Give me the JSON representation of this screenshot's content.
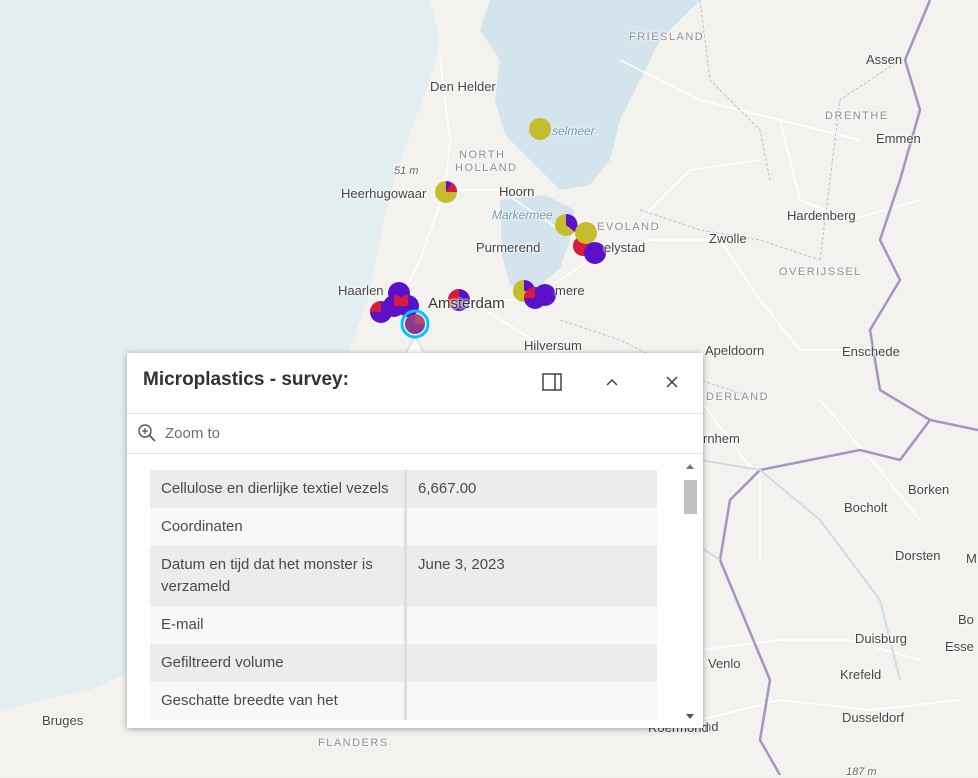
{
  "map": {
    "labels": [
      {
        "id": "friesland",
        "text": "FRIESLAND",
        "kind": "region"
      },
      {
        "id": "den-helder",
        "text": "Den Helder",
        "kind": "city"
      },
      {
        "id": "ijsselmeer",
        "text": "selmeer",
        "kind": "water"
      },
      {
        "id": "assen",
        "text": "Assen",
        "kind": "city"
      },
      {
        "id": "drenthe",
        "text": "DRENTHE",
        "kind": "region"
      },
      {
        "id": "emmen",
        "text": "Emmen",
        "kind": "city"
      },
      {
        "id": "north-holland-1",
        "text": "NORTH",
        "kind": "region"
      },
      {
        "id": "north-holland-2",
        "text": "HOLLAND",
        "kind": "region"
      },
      {
        "id": "elev-51",
        "text": "51 m",
        "kind": "elev"
      },
      {
        "id": "heerhugowaard",
        "text": "Heerhugowaar",
        "kind": "city"
      },
      {
        "id": "hoorn",
        "text": "Hoorn",
        "kind": "city"
      },
      {
        "id": "markermeer",
        "text": "Markermee",
        "kind": "water"
      },
      {
        "id": "flevoland",
        "text": "EVOLAND",
        "kind": "region"
      },
      {
        "id": "hardenberg",
        "text": "Hardenberg",
        "kind": "city"
      },
      {
        "id": "purmerend",
        "text": "Purmerend",
        "kind": "city"
      },
      {
        "id": "lelystad",
        "text": "elystad",
        "kind": "city"
      },
      {
        "id": "zwolle",
        "text": "Zwolle",
        "kind": "city"
      },
      {
        "id": "overijssel",
        "text": "OVERIJSSEL",
        "kind": "region"
      },
      {
        "id": "haarlem",
        "text": "Haarlen",
        "kind": "city"
      },
      {
        "id": "amsterdam",
        "text": "Amsterdam",
        "kind": "big"
      },
      {
        "id": "almere",
        "text": "mere",
        "kind": "city"
      },
      {
        "id": "hilversum",
        "text": "Hilversum",
        "kind": "city"
      },
      {
        "id": "apeldoorn",
        "text": "Apeldoorn",
        "kind": "city"
      },
      {
        "id": "enschede",
        "text": "Enschede",
        "kind": "city"
      },
      {
        "id": "gelderland",
        "text": "DERLAND",
        "kind": "region"
      },
      {
        "id": "arnhem",
        "text": "rnhem",
        "kind": "city"
      },
      {
        "id": "borken",
        "text": "Borken",
        "kind": "city"
      },
      {
        "id": "bocholt",
        "text": "Bocholt",
        "kind": "city"
      },
      {
        "id": "dorsten",
        "text": "Dorsten",
        "kind": "city"
      },
      {
        "id": "m-cut",
        "text": "M",
        "kind": "city"
      },
      {
        "id": "duisburg",
        "text": "Duisburg",
        "kind": "city"
      },
      {
        "id": "bo-cut",
        "text": "Bo",
        "kind": "city"
      },
      {
        "id": "essen",
        "text": "Esse",
        "kind": "city"
      },
      {
        "id": "venlo",
        "text": "Venlo",
        "kind": "city"
      },
      {
        "id": "krefeld",
        "text": "Krefeld",
        "kind": "city"
      },
      {
        "id": "bruges",
        "text": "Bruges",
        "kind": "city"
      },
      {
        "id": "flanders",
        "text": "FLANDERS",
        "kind": "region"
      },
      {
        "id": "nd-cut",
        "text": "nd",
        "kind": "city"
      },
      {
        "id": "roermond",
        "text": "Roermond",
        "kind": "city"
      },
      {
        "id": "dusseldorf",
        "text": "Dusseldorf",
        "kind": "city"
      },
      {
        "id": "elev-187",
        "text": "187 m",
        "kind": "elev"
      }
    ],
    "colors": {
      "red": "#d81b3c",
      "purple": "#5b11c9",
      "olive": "#c6bd2c",
      "selected": "#00c5ff"
    }
  },
  "popup": {
    "title": "Microplastics - survey:",
    "dock_icon": "dock-panel-icon",
    "collapse_icon": "chevron-up-icon",
    "close_icon": "close-icon",
    "zoom_label": "Zoom to",
    "zoom_icon": "zoom-in-icon",
    "rows": [
      {
        "key": "Cellulose en dierlijke textiel vezels",
        "value": "6,667.00"
      },
      {
        "key": "Coordinaten",
        "value": ""
      },
      {
        "key": "Datum en tijd dat het monster is verzameld",
        "value": "June 3, 2023"
      },
      {
        "key": "E-mail",
        "value": ""
      },
      {
        "key": "Gefiltreerd volume",
        "value": ""
      },
      {
        "key": "Geschatte breedte van het",
        "value": ""
      }
    ]
  }
}
